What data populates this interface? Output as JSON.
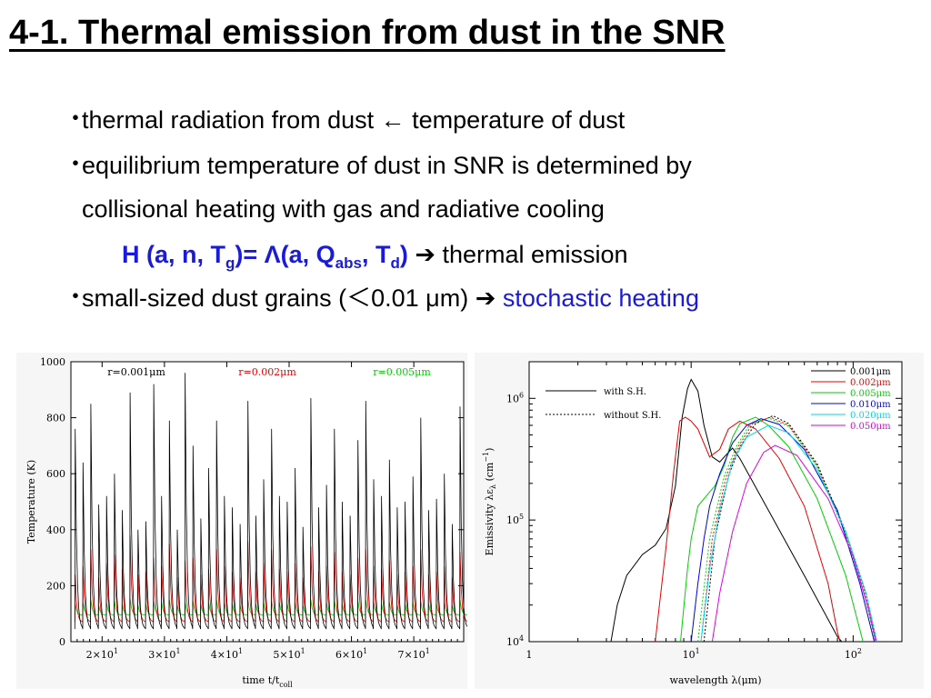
{
  "slide": {
    "title": "4-1. Thermal emission from dust in the SNR",
    "bullet_glyph": "・",
    "bullets": [
      {
        "pre": "thermal radiation from dust ",
        "arrow": "←",
        "post": " temperature of dust"
      },
      {
        "line1": "equilibrium temperature of dust in SNR is determined by",
        "line2": "collisional heating with gas and radiative cooling"
      },
      {
        "pre": "small-sized dust grains (",
        "lt": "＜",
        "mid": "0.01 μm) ",
        "arrow": "➔",
        "highlight": "stochastic heating"
      }
    ],
    "formula": {
      "p1": "H (a, n, T",
      "s1": "g",
      "p2": ")= Λ(a, Q",
      "s2": "abs",
      "p3": ", T",
      "s3": "d",
      "p4": ")",
      "arrow": "➔",
      "post": " thermal emission"
    }
  },
  "chart_data": [
    {
      "type": "line",
      "xlabel": "time t/t",
      "xlabel_sub": "coll",
      "ylabel": "Temperature (K)",
      "xlim": [
        15,
        78
      ],
      "ylim": [
        0,
        1000
      ],
      "yticks": [
        "0",
        "200",
        "400",
        "600",
        "800",
        "1000"
      ],
      "xticks": [
        {
          "v": 20,
          "m": "2×10",
          "e": "1"
        },
        {
          "v": 30,
          "m": "3×10",
          "e": "1"
        },
        {
          "v": 40,
          "m": "4×10",
          "e": "1"
        },
        {
          "v": 50,
          "m": "5×10",
          "e": "1"
        },
        {
          "v": 60,
          "m": "6×10",
          "e": "1"
        },
        {
          "v": 70,
          "m": "7×10",
          "e": "1"
        }
      ],
      "series": [
        {
          "name": "r=0.001μm",
          "color": "#000000",
          "base": 45,
          "peaks": [
            760,
            640,
            850,
            490,
            520,
            600,
            470,
            890,
            400,
            430,
            920,
            520,
            790,
            400,
            960,
            700,
            440,
            620,
            790,
            520,
            480,
            420,
            860,
            450,
            580,
            760,
            520,
            500,
            620,
            410,
            870,
            480,
            560,
            760,
            500,
            450,
            720,
            860,
            580,
            520,
            650,
            480,
            500,
            590,
            800,
            470,
            510,
            600,
            420,
            840
          ]
        },
        {
          "name": "r=0.002μm",
          "color": "#e80000",
          "base": 70,
          "peaks": [
            240,
            270,
            330,
            230,
            280,
            310,
            260,
            380,
            240,
            250,
            300,
            270,
            350,
            230,
            290,
            300,
            240,
            260,
            330,
            270,
            250,
            230,
            360,
            250,
            280,
            330,
            260,
            250,
            280,
            230,
            340,
            250,
            270,
            320,
            250,
            240,
            300,
            330,
            270,
            260,
            290,
            240,
            250,
            270,
            330,
            240,
            250,
            270,
            230,
            320
          ]
        },
        {
          "name": "r=0.005μm",
          "color": "#00d000",
          "base": 95,
          "peaks": [
            135,
            140,
            150,
            130,
            140,
            145,
            135,
            155,
            130,
            135,
            145,
            140,
            150,
            130,
            140,
            145,
            135,
            140,
            150,
            140,
            135,
            130,
            150,
            135,
            140,
            145,
            140,
            135,
            140,
            130,
            150,
            135,
            140,
            145,
            135,
            135,
            145,
            150,
            140,
            135,
            140,
            130,
            135,
            140,
            145,
            135,
            135,
            140,
            130,
            150
          ]
        }
      ]
    },
    {
      "type": "line",
      "xlabel": "wavelength λ(μm)",
      "ylabel": "Emissivity λε",
      "ylabel_sub": "λ",
      "ylabel_unit": "(cm",
      "ylabel_unit_sup": "−1",
      "ylabel_unit_end": ")",
      "xlim": [
        1,
        200
      ],
      "ylim": [
        10000,
        2000000
      ],
      "log_x": true,
      "log_y": true,
      "xticks": [
        {
          "v": 1,
          "m": "1",
          "e": ""
        },
        {
          "v": 10,
          "m": "10",
          "e": "1"
        },
        {
          "v": 100,
          "m": "10",
          "e": "2"
        }
      ],
      "yticks": [
        {
          "v": 10000,
          "m": "10",
          "e": "4"
        },
        {
          "v": 100000,
          "m": "10",
          "e": "5"
        },
        {
          "v": 1000000,
          "m": "10",
          "e": "6"
        }
      ],
      "style_legend": [
        {
          "name": "with S.H.",
          "dash": false
        },
        {
          "name": "without S.H.",
          "dash": true
        }
      ],
      "series": [
        {
          "name": "0.001μm",
          "color": "#000000",
          "points": [
            [
              3.2,
              10000
            ],
            [
              3.5,
              20000
            ],
            [
              4,
              35000
            ],
            [
              5,
              52000
            ],
            [
              6,
              62000
            ],
            [
              7,
              85000
            ],
            [
              8,
              190000
            ],
            [
              8.8,
              700000
            ],
            [
              9.5,
              1200000
            ],
            [
              10,
              1430000
            ],
            [
              11,
              1150000
            ],
            [
              12,
              600000
            ],
            [
              13.5,
              330000
            ],
            [
              15,
              300000
            ],
            [
              17,
              360000
            ],
            [
              18,
              390000
            ],
            [
              20,
              320000
            ],
            [
              30,
              120000
            ],
            [
              50,
              35000
            ],
            [
              80,
              11000
            ],
            [
              85,
              10000
            ]
          ]
        },
        {
          "name": "0.002μm",
          "color": "#e80000",
          "points": [
            [
              6,
              10000
            ],
            [
              7,
              60000
            ],
            [
              7.8,
              250000
            ],
            [
              8.5,
              650000
            ],
            [
              9.2,
              700000
            ],
            [
              10,
              650000
            ],
            [
              11,
              560000
            ],
            [
              13,
              330000
            ],
            [
              15,
              380000
            ],
            [
              17,
              560000
            ],
            [
              20,
              650000
            ],
            [
              25,
              560000
            ],
            [
              35,
              320000
            ],
            [
              50,
              130000
            ],
            [
              70,
              30000
            ],
            [
              80,
              12000
            ],
            [
              83,
              10000
            ]
          ]
        },
        {
          "name": "0.005μm",
          "color": "#00d000",
          "points": [
            [
              8.6,
              10000
            ],
            [
              9.5,
              40000
            ],
            [
              10,
              70000
            ],
            [
              11,
              130000
            ],
            [
              13,
              170000
            ],
            [
              14,
              190000
            ],
            [
              16,
              280000
            ],
            [
              18,
              480000
            ],
            [
              20,
              620000
            ],
            [
              25,
              700000
            ],
            [
              30,
              600000
            ],
            [
              40,
              400000
            ],
            [
              60,
              150000
            ],
            [
              90,
              35000
            ],
            [
              115,
              10000
            ]
          ]
        },
        {
          "name": "0.010μm",
          "color": "#0000e0",
          "points": [
            [
              10,
              10000
            ],
            [
              11,
              30000
            ],
            [
              12,
              70000
            ],
            [
              13,
              130000
            ],
            [
              15,
              240000
            ],
            [
              18,
              430000
            ],
            [
              22,
              600000
            ],
            [
              27,
              680000
            ],
            [
              35,
              610000
            ],
            [
              50,
              380000
            ],
            [
              80,
              120000
            ],
            [
              110,
              30000
            ],
            [
              135,
              10000
            ]
          ]
        },
        {
          "name": "0.020μm",
          "color": "#00d8e0",
          "points": [
            [
              11.5,
              10000
            ],
            [
              13,
              40000
            ],
            [
              15,
              120000
            ],
            [
              18,
              300000
            ],
            [
              22,
              480000
            ],
            [
              30,
              600000
            ],
            [
              40,
              520000
            ],
            [
              60,
              260000
            ],
            [
              90,
              80000
            ],
            [
              120,
              25000
            ],
            [
              140,
              10000
            ]
          ]
        },
        {
          "name": "0.050μm",
          "color": "#e000e0",
          "points": [
            [
              13.5,
              10000
            ],
            [
              15,
              25000
            ],
            [
              18,
              80000
            ],
            [
              22,
              200000
            ],
            [
              28,
              360000
            ],
            [
              33,
              410000
            ],
            [
              45,
              340000
            ],
            [
              70,
              150000
            ],
            [
              100,
              50000
            ],
            [
              125,
              18000
            ],
            [
              138,
              10000
            ]
          ]
        }
      ],
      "nosh_series": [
        {
          "name": "0.001μm",
          "color": "#000000",
          "points": [
            [
              12,
              10000
            ],
            [
              14,
              70000
            ],
            [
              17,
              230000
            ],
            [
              20,
              400000
            ],
            [
              25,
              620000
            ],
            [
              32,
              720000
            ],
            [
              40,
              620000
            ],
            [
              60,
              290000
            ],
            [
              90,
              80000
            ],
            [
              120,
              25000
            ],
            [
              140,
              10000
            ]
          ]
        },
        {
          "name": "0.002μm",
          "color": "#e80000",
          "points": [
            [
              11.5,
              10000
            ],
            [
              13.5,
              70000
            ],
            [
              16.5,
              230000
            ],
            [
              19.5,
              400000
            ],
            [
              24,
              620000
            ],
            [
              31,
              700000
            ],
            [
              40,
              600000
            ],
            [
              60,
              280000
            ],
            [
              90,
              78000
            ],
            [
              120,
              24000
            ],
            [
              139,
              10000
            ]
          ]
        },
        {
          "name": "0.005μm",
          "color": "#00d000",
          "points": [
            [
              11,
              10000
            ],
            [
              13,
              70000
            ],
            [
              16,
              230000
            ],
            [
              19,
              400000
            ],
            [
              23,
              610000
            ],
            [
              30,
              690000
            ],
            [
              40,
              590000
            ],
            [
              60,
              275000
            ],
            [
              90,
              76000
            ],
            [
              118,
              24000
            ],
            [
              137,
              10000
            ]
          ]
        }
      ]
    }
  ]
}
